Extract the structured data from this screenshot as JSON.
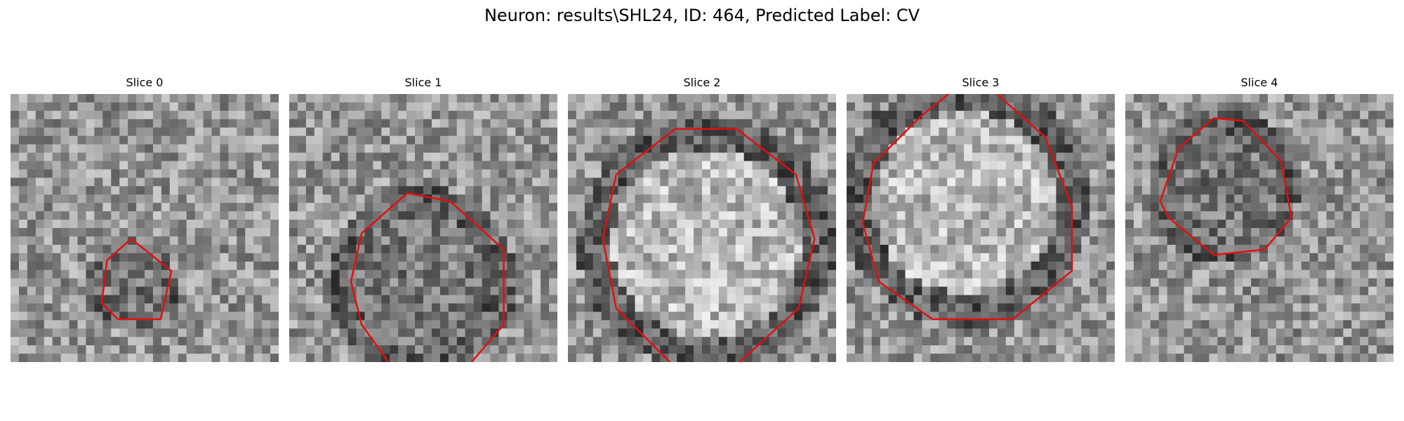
{
  "figure": {
    "title": "Neuron: results\\SHL24, ID: 464, Predicted Label: CV"
  },
  "contour_color": "#e01010",
  "slices": [
    {
      "label": "Slice 0",
      "contour": [
        [
          0.4,
          0.84
        ],
        [
          0.34,
          0.78
        ],
        [
          0.36,
          0.62
        ],
        [
          0.45,
          0.54
        ],
        [
          0.6,
          0.66
        ],
        [
          0.56,
          0.84
        ]
      ]
    },
    {
      "label": "Slice 1",
      "contour": [
        [
          0.37,
          1.0
        ],
        [
          0.27,
          0.86
        ],
        [
          0.23,
          0.7
        ],
        [
          0.27,
          0.52
        ],
        [
          0.44,
          0.37
        ],
        [
          0.6,
          0.4
        ],
        [
          0.8,
          0.58
        ],
        [
          0.8,
          0.86
        ],
        [
          0.68,
          1.0
        ]
      ]
    },
    {
      "label": "Slice 2",
      "contour": [
        [
          0.38,
          1.0
        ],
        [
          0.18,
          0.8
        ],
        [
          0.13,
          0.54
        ],
        [
          0.18,
          0.3
        ],
        [
          0.4,
          0.13
        ],
        [
          0.63,
          0.13
        ],
        [
          0.85,
          0.3
        ],
        [
          0.92,
          0.54
        ],
        [
          0.86,
          0.8
        ],
        [
          0.64,
          1.0
        ]
      ]
    },
    {
      "label": "Slice 3",
      "contour": [
        [
          0.38,
          0.0
        ],
        [
          0.28,
          0.08
        ],
        [
          0.1,
          0.26
        ],
        [
          0.06,
          0.48
        ],
        [
          0.12,
          0.7
        ],
        [
          0.32,
          0.84
        ],
        [
          0.62,
          0.84
        ],
        [
          0.84,
          0.66
        ],
        [
          0.84,
          0.42
        ],
        [
          0.74,
          0.16
        ],
        [
          0.56,
          0.0
        ]
      ]
    },
    {
      "label": "Slice 4",
      "contour": [
        [
          0.13,
          0.4
        ],
        [
          0.2,
          0.2
        ],
        [
          0.33,
          0.09
        ],
        [
          0.44,
          0.1
        ],
        [
          0.58,
          0.25
        ],
        [
          0.62,
          0.46
        ],
        [
          0.52,
          0.58
        ],
        [
          0.33,
          0.6
        ],
        [
          0.16,
          0.46
        ]
      ]
    }
  ]
}
